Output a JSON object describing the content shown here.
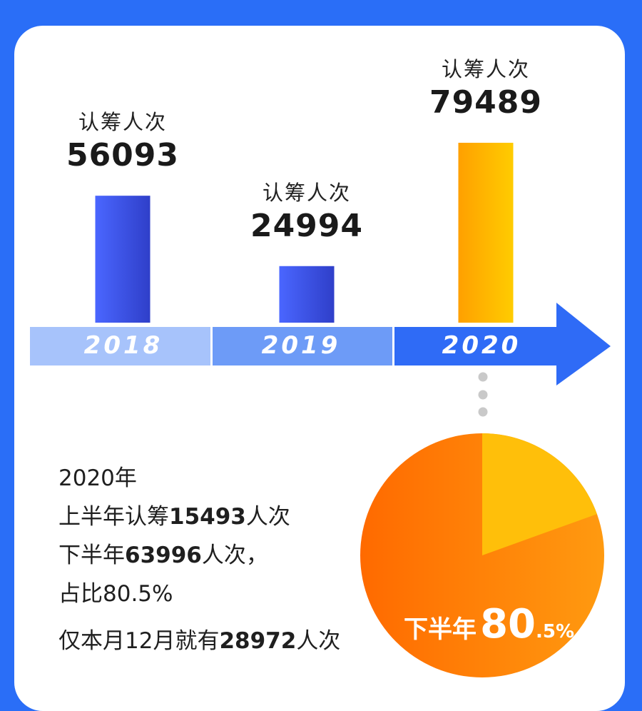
{
  "chart_data": [
    {
      "type": "bar",
      "categories": [
        "2018",
        "2019",
        "2020"
      ],
      "values": [
        56093,
        24994,
        79489
      ],
      "value_caption": "认筹人次",
      "colors": [
        "#3d4fe0",
        "#3d4fe0",
        "#ffb300"
      ]
    },
    {
      "type": "pie",
      "slices": [
        {
          "name": "下半年",
          "value": 80.5,
          "color": "#ff6a00"
        },
        {
          "name": "上半年",
          "value": 19.5,
          "color": "#ffbf0a"
        }
      ]
    }
  ],
  "timeline": {
    "segment_colors": [
      "#a7c3fb",
      "#6d9bf7",
      "#2f6bf6"
    ]
  },
  "info": {
    "line1": "2020年",
    "line2_pre": "上半年认筹",
    "line2_num": "15493",
    "line2_post": "人次",
    "line3_pre": "下半年",
    "line3_num": "63996",
    "line3_post": "人次，",
    "line4": "占比80.5%",
    "line5_pre": "仅本月12月就有",
    "line5_num": "28972",
    "line5_post": "人次"
  },
  "pie_label": {
    "text": "下半年",
    "big": "80",
    "small": ".5%"
  }
}
